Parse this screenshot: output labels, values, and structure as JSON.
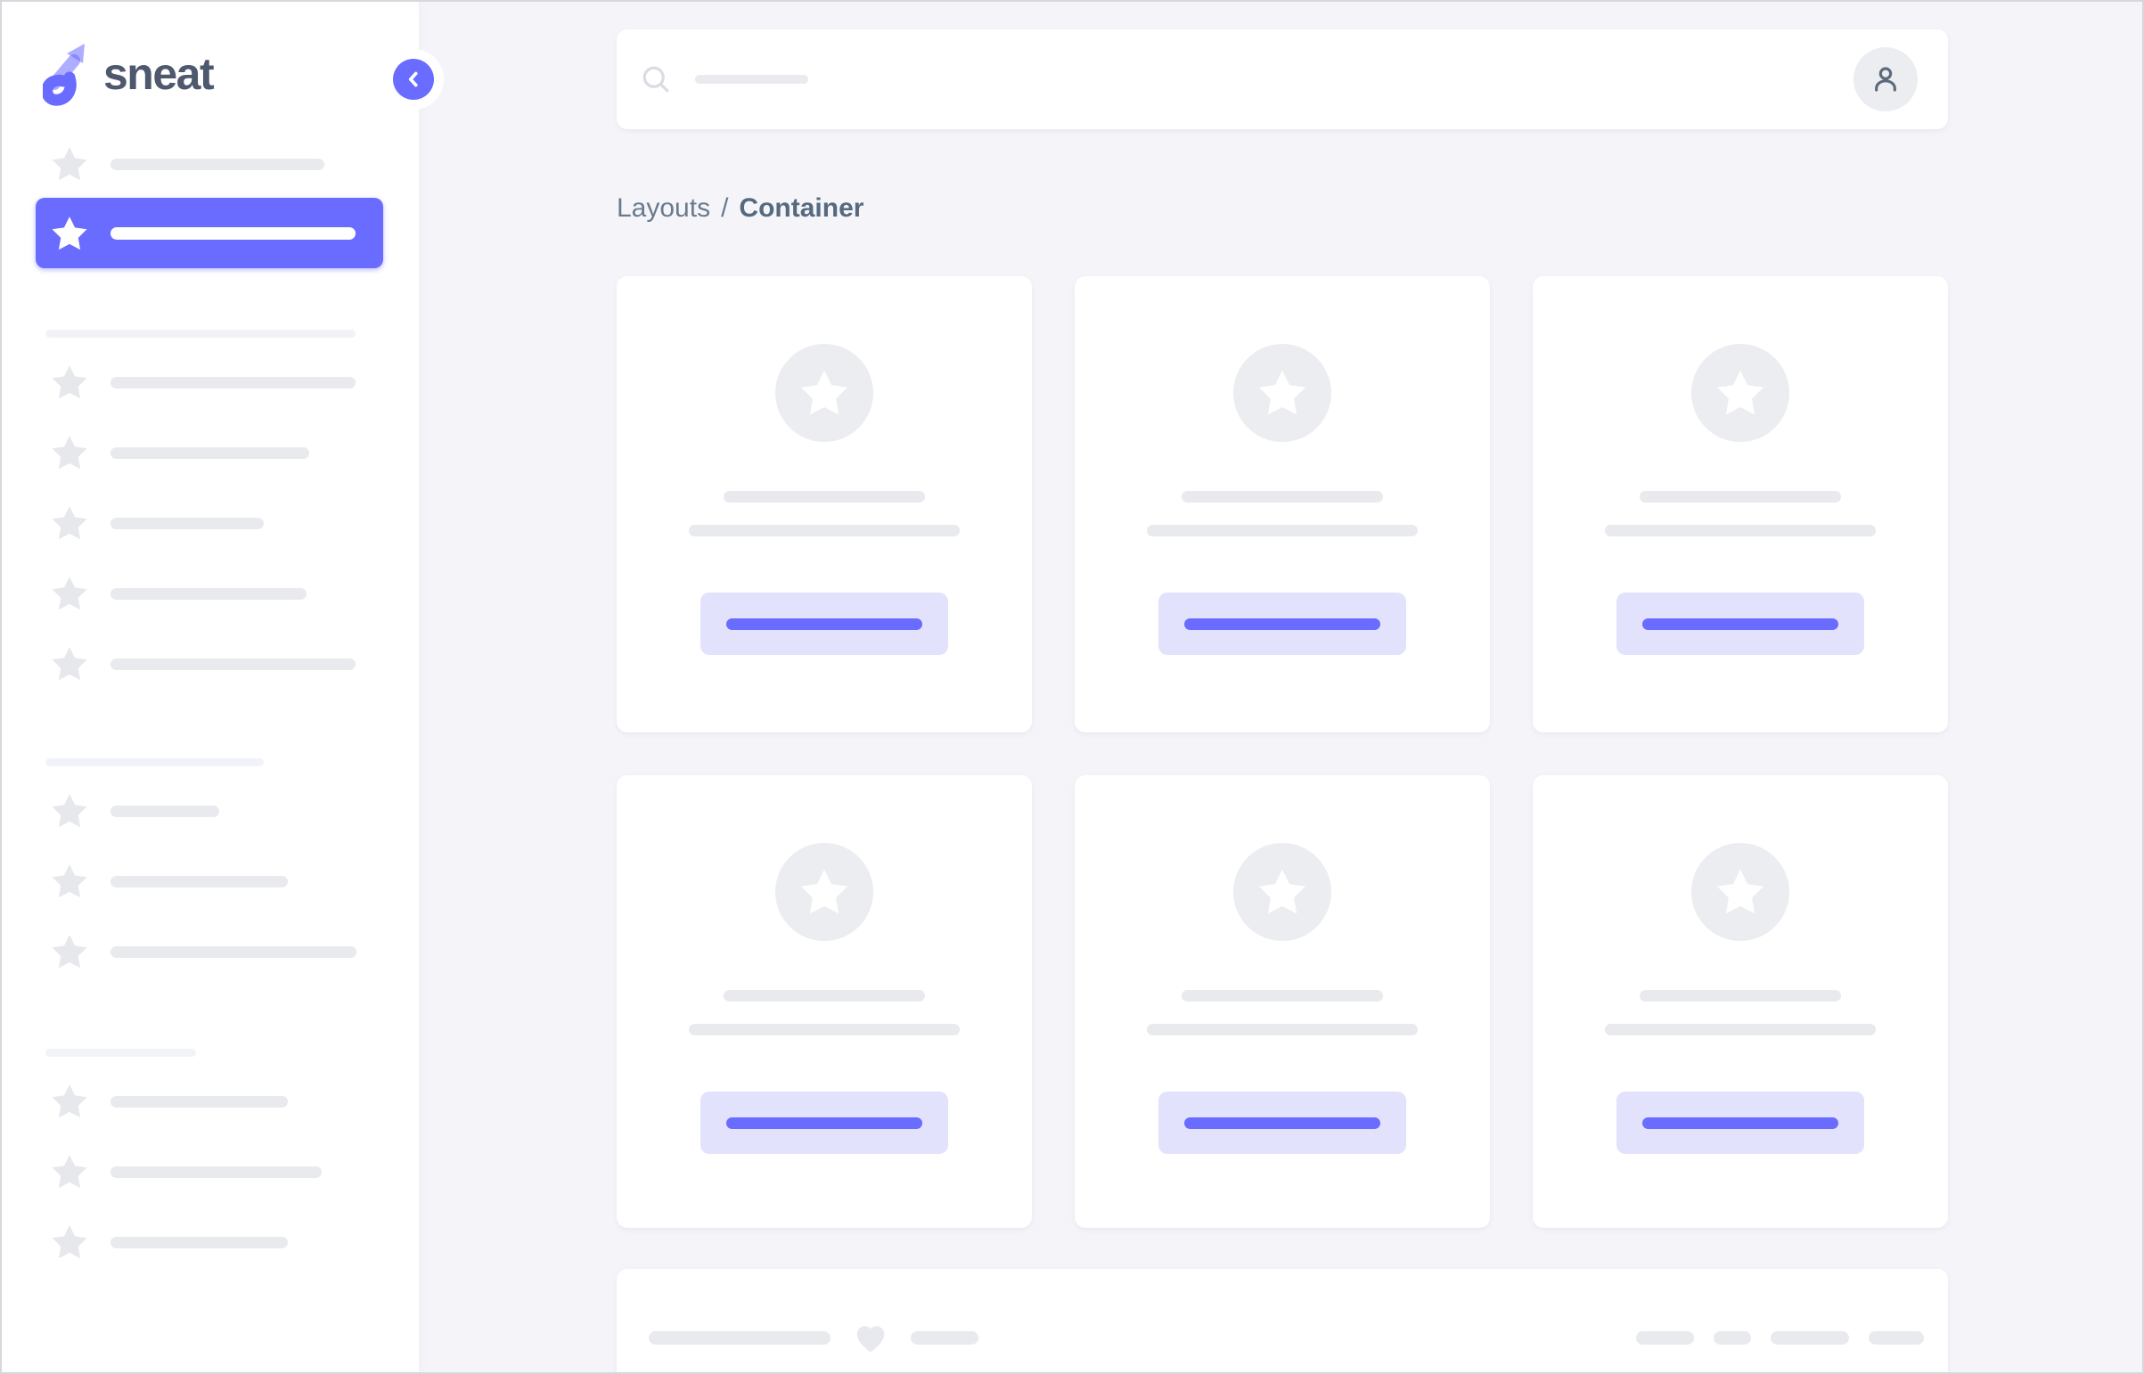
{
  "app": {
    "name": "sneat",
    "logo_icon": "sneat-logo-icon"
  },
  "colors": {
    "primary": "#696cff",
    "body_bg": "#f5f5f9",
    "surface": "#ffffff",
    "button_label_bg": "#e2e2fc",
    "skeleton": "#e8eaee",
    "skeleton_light": "#f2f3f8",
    "star_gray": "#e6e8ec",
    "avatar_circle": "#ecedf1",
    "text_muted": "#697a8d",
    "text_dark": "#566a7f"
  },
  "topbar": {
    "search_icon": "magnifier-icon",
    "search_bar_width": 127,
    "user_icon": "person-icon"
  },
  "breadcrumb": {
    "parent": "Layouts",
    "separator": "/",
    "current": "Container"
  },
  "sidebar": {
    "collapse_icon": "chevron-left-icon",
    "star_icon": "star-icon",
    "top_items": [
      {
        "bar": 240
      }
    ],
    "active_item": {
      "bar": 275
    },
    "section1": {
      "header": 348,
      "items": [
        {
          "bar": 275
        },
        {
          "bar": 223
        },
        {
          "bar": 172
        },
        {
          "bar": 220
        },
        {
          "bar": 275
        }
      ]
    },
    "section2": {
      "header": 245,
      "items": [
        {
          "bar": 122
        },
        {
          "bar": 199
        },
        {
          "bar": 276
        }
      ]
    },
    "section3": {
      "header": 169,
      "items": [
        {
          "bar": 199
        },
        {
          "bar": 237
        },
        {
          "bar": 199
        }
      ]
    }
  },
  "grid": {
    "cards": [
      {
        "avatar_icon": "star-icon",
        "bar1": 226,
        "bar2": 304,
        "button_bar": 220
      },
      {
        "avatar_icon": "star-icon",
        "bar1": 226,
        "bar2": 304,
        "button_bar": 220
      },
      {
        "avatar_icon": "star-icon",
        "bar1": 226,
        "bar2": 304,
        "button_bar": 220
      },
      {
        "avatar_icon": "star-icon",
        "bar1": 226,
        "bar2": 304,
        "button_bar": 220
      },
      {
        "avatar_icon": "star-icon",
        "bar1": 226,
        "bar2": 304,
        "button_bar": 220
      },
      {
        "avatar_icon": "star-icon",
        "bar1": 226,
        "bar2": 304,
        "button_bar": 220
      }
    ]
  },
  "footer": {
    "bar1": 204,
    "heart_icon": "heart-icon",
    "bar2": 76,
    "right_bars": [
      {
        "bar": 65
      },
      {
        "bar": 42
      },
      {
        "bar": 88
      },
      {
        "bar": 62
      }
    ]
  }
}
